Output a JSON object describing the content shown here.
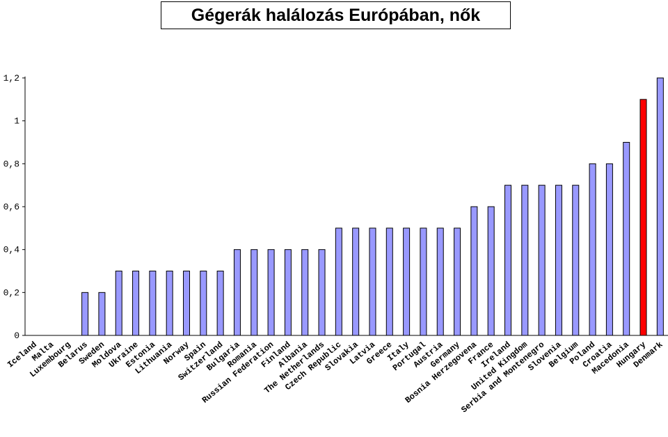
{
  "chart_data": {
    "type": "bar",
    "title": "Gégerák halálozás Európában, nők",
    "xlabel": "",
    "ylabel": "",
    "ylim": [
      0,
      1.2
    ],
    "yticks": [
      "0",
      "0,2",
      "0,4",
      "0,6",
      "0,8",
      "1",
      "1,2"
    ],
    "grid": false,
    "bar_color": "#9999ff",
    "highlight_color": "#ff0000",
    "highlight_category": "Hungary",
    "categories": [
      "Iceland",
      "Malta",
      "Luxembourg",
      "Belarus",
      "Sweden",
      "Moldova",
      "Ukraine",
      "Estonia",
      "Lithuania",
      "Norway",
      "Spain",
      "Switzerland",
      "Bulgaria",
      "Romania",
      "Russian Federation",
      "Finland",
      "Albania",
      "The Netherlands",
      "Czech Republic",
      "Slovakia",
      "Latvia",
      "Greece",
      "Italy",
      "Portugal",
      "Austria",
      "Germany",
      "Bosnia Herzegovena",
      "France",
      "Ireland",
      "United Kingdom",
      "Serbia and Montenegro",
      "Slovenia",
      "Belgium",
      "Poland",
      "Croatia",
      "Macedonia",
      "Hungary",
      "Denmark"
    ],
    "values": [
      0,
      0,
      0,
      0.2,
      0.2,
      0.3,
      0.3,
      0.3,
      0.3,
      0.3,
      0.3,
      0.3,
      0.4,
      0.4,
      0.4,
      0.4,
      0.4,
      0.4,
      0.5,
      0.5,
      0.5,
      0.5,
      0.5,
      0.5,
      0.5,
      0.5,
      0.6,
      0.6,
      0.7,
      0.7,
      0.7,
      0.7,
      0.7,
      0.8,
      0.8,
      0.9,
      1.1,
      1.2
    ]
  }
}
